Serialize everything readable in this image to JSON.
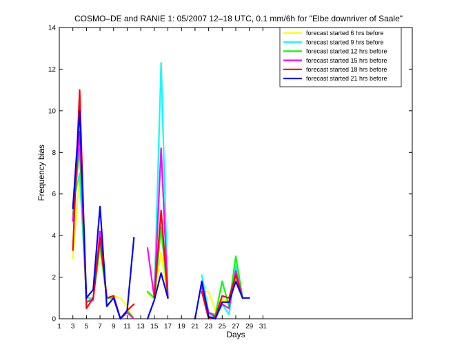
{
  "chart_data": {
    "type": "line",
    "title": "COSMO–DE and RANIE 1: 05/2007 12–18 UTC, 0.1 mm/6h for \"Elbe downriver of Saale\"",
    "xlabel": "Days",
    "ylabel": "Frequency bias",
    "xlim": [
      1,
      53
    ],
    "ylim": [
      0,
      14
    ],
    "xticks": [
      1,
      3,
      5,
      7,
      9,
      11,
      13,
      15,
      17,
      19,
      21,
      23,
      25,
      27,
      29,
      31
    ],
    "yticks": [
      0,
      2,
      4,
      6,
      8,
      10,
      12,
      14
    ],
    "grid": false,
    "legend_position": "top-right",
    "series": [
      {
        "name": "forecast started 6 hrs before",
        "color": "#ffff00",
        "segments": [
          [
            [
              3,
              2.9
            ],
            [
              4,
              6.9
            ],
            [
              5,
              1.0
            ],
            [
              6,
              1.0
            ],
            [
              7,
              3.3
            ],
            [
              8,
              1.0
            ],
            [
              9,
              1.1
            ],
            [
              10,
              1.0
            ],
            [
              11,
              0.6
            ],
            [
              12,
              0.0
            ]
          ],
          [
            [
              14,
              1.2
            ],
            [
              15,
              1.0
            ],
            [
              16,
              3.2
            ],
            [
              17,
              1.0
            ]
          ],
          [
            [
              22,
              1.3
            ],
            [
              23,
              1.3
            ],
            [
              24,
              0.4
            ],
            [
              25,
              0.9
            ],
            [
              26,
              0.9
            ],
            [
              27,
              1.9
            ],
            [
              28,
              1.0
            ]
          ]
        ]
      },
      {
        "name": "forecast started 9 hrs before",
        "color": "#00ffff",
        "segments": [
          [
            [
              3,
              5.5
            ],
            [
              4,
              7.0
            ],
            [
              5,
              1.0
            ],
            [
              6,
              1.0
            ],
            [
              7,
              3.5
            ],
            [
              8,
              1.0
            ],
            [
              9,
              1.1
            ],
            [
              10,
              0.0
            ],
            [
              11,
              0.3
            ],
            [
              12,
              0.0
            ]
          ],
          [
            [
              14,
              1.3
            ],
            [
              15,
              1.0
            ],
            [
              16,
              12.3
            ],
            [
              17,
              1.0
            ]
          ],
          [
            [
              22,
              2.1
            ],
            [
              23,
              0.3
            ],
            [
              24,
              0.0
            ],
            [
              25,
              0.7
            ],
            [
              26,
              0.2
            ],
            [
              27,
              2.5
            ],
            [
              28,
              1.0
            ]
          ]
        ]
      },
      {
        "name": "forecast started 12 hrs before",
        "color": "#00ff00",
        "segments": [
          [
            [
              3,
              5.0
            ],
            [
              4,
              8.2
            ],
            [
              5,
              0.8
            ],
            [
              6,
              1.0
            ],
            [
              7,
              3.6
            ],
            [
              8,
              1.0
            ],
            [
              9,
              1.0
            ],
            [
              10,
              0.0
            ],
            [
              11,
              0.4
            ],
            [
              12,
              0.0
            ]
          ],
          [
            [
              14,
              1.3
            ],
            [
              15,
              1.0
            ],
            [
              16,
              4.4
            ],
            [
              17,
              1.0
            ]
          ],
          [
            [
              22,
              1.6
            ],
            [
              23,
              0.3
            ],
            [
              24,
              0.2
            ],
            [
              25,
              1.8
            ],
            [
              26,
              0.6
            ],
            [
              27,
              3.0
            ],
            [
              28,
              1.0
            ]
          ]
        ]
      },
      {
        "name": "forecast started 15 hrs before",
        "color": "#ff00ff",
        "segments": [
          [
            [
              3,
              4.7
            ],
            [
              4,
              9.0
            ],
            [
              5,
              0.8
            ],
            [
              6,
              0.9
            ],
            [
              7,
              4.2
            ],
            [
              8,
              1.0
            ],
            [
              9,
              1.1
            ],
            [
              10,
              0.0
            ],
            [
              11,
              0.3
            ],
            [
              12,
              0.0
            ]
          ],
          [
            [
              14,
              3.4
            ],
            [
              15,
              1.0
            ],
            [
              16,
              8.2
            ],
            [
              17,
              1.0
            ]
          ],
          [
            [
              22,
              1.5
            ],
            [
              23,
              0.3
            ],
            [
              24,
              0.1
            ],
            [
              25,
              0.7
            ],
            [
              26,
              0.5
            ],
            [
              27,
              2.3
            ],
            [
              28,
              1.0
            ]
          ]
        ]
      },
      {
        "name": "forecast started 18 hrs before",
        "color": "#ff0000",
        "segments": [
          [
            [
              3,
              3.3
            ],
            [
              4,
              11.0
            ],
            [
              5,
              0.5
            ],
            [
              6,
              1.0
            ],
            [
              7,
              3.9
            ],
            [
              8,
              1.0
            ],
            [
              9,
              1.1
            ],
            [
              10,
              0.0
            ],
            [
              11,
              0.4
            ],
            [
              12,
              0.7
            ]
          ],
          [
            [
              15,
              1.0
            ],
            [
              16,
              5.2
            ],
            [
              17,
              1.0
            ]
          ],
          [
            [
              22,
              1.3
            ],
            [
              23,
              0.0
            ],
            [
              24,
              0.1
            ],
            [
              25,
              1.1
            ],
            [
              26,
              1.0
            ],
            [
              27,
              2.1
            ],
            [
              28,
              1.0
            ]
          ]
        ]
      },
      {
        "name": "forecast started 21 hrs before",
        "color": "#0000ff",
        "segments": [
          [
            [
              3,
              5.3
            ],
            [
              4,
              10.0
            ],
            [
              5,
              1.0
            ],
            [
              6,
              1.4
            ],
            [
              7,
              5.4
            ],
            [
              8,
              0.6
            ],
            [
              9,
              1.0
            ],
            [
              10,
              0.0
            ],
            [
              11,
              0.4
            ],
            [
              12,
              3.9
            ]
          ],
          [
            [
              14,
              0.0
            ],
            [
              15,
              0.9
            ],
            [
              16,
              2.2
            ],
            [
              17,
              1.0
            ]
          ],
          [
            [
              21,
              0.0
            ],
            [
              22,
              1.8
            ],
            [
              23,
              0.1
            ],
            [
              24,
              0.0
            ],
            [
              25,
              0.8
            ],
            [
              26,
              0.8
            ],
            [
              27,
              1.8
            ],
            [
              28,
              1.0
            ],
            [
              29,
              1.0
            ]
          ]
        ]
      }
    ]
  }
}
